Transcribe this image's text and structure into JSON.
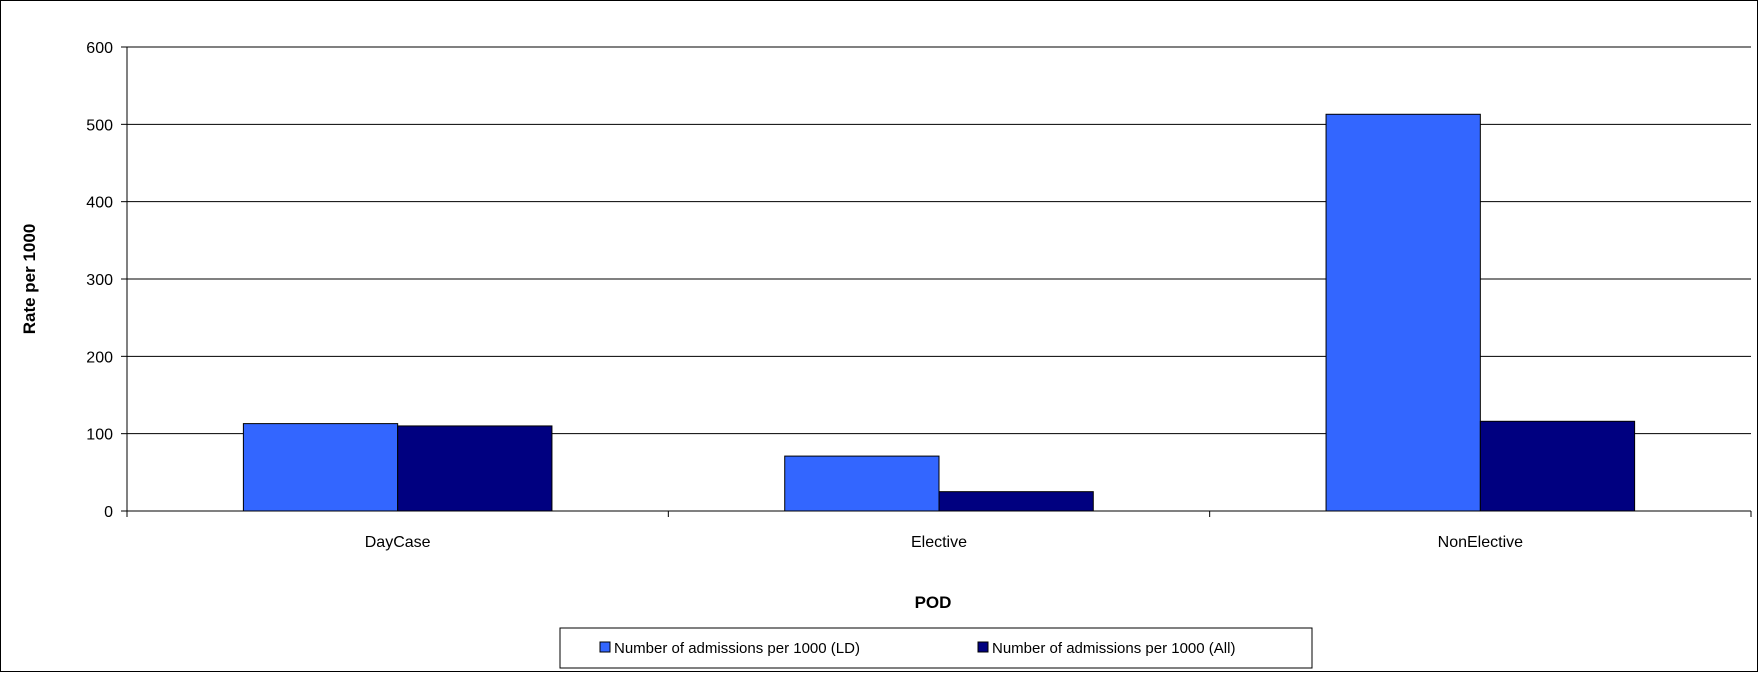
{
  "chart_data": {
    "type": "bar",
    "title": "",
    "xlabel": "POD",
    "ylabel": "Rate per 1000",
    "categories": [
      "DayCase",
      "Elective",
      "NonElective"
    ],
    "series": [
      {
        "name": "Number of admissions per 1000 (LD)",
        "color": "#3366FF",
        "values": [
          113,
          71,
          513
        ]
      },
      {
        "name": "Number of admissions per 1000 (All)",
        "color": "#000080",
        "values": [
          110,
          25,
          116
        ]
      }
    ],
    "ylim": [
      0,
      600
    ],
    "yticks": [
      0,
      100,
      200,
      300,
      400,
      500,
      600
    ],
    "grid": true,
    "legend_position": "bottom"
  }
}
